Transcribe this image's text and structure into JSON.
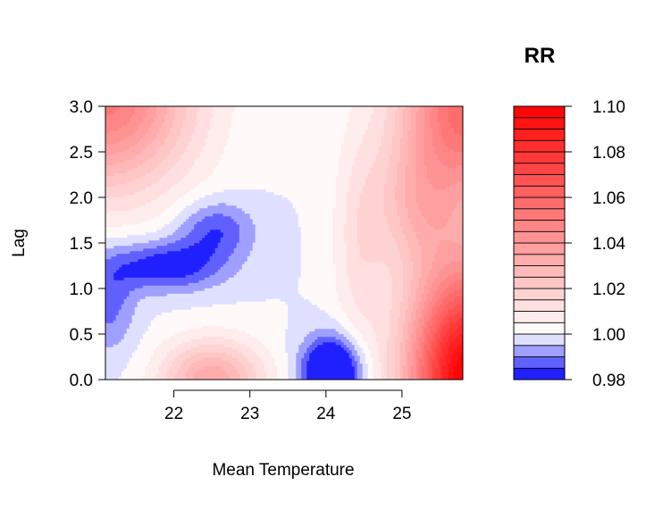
{
  "chart_data": {
    "type": "heatmap",
    "subtype": "filled-contour",
    "title": "",
    "xlabel": "Mean Temperature",
    "ylabel": "Lag",
    "legend_title": "RR",
    "xlim": [
      21.1,
      25.8
    ],
    "ylim": [
      0.0,
      3.0
    ],
    "x_ticks": [
      22,
      23,
      24,
      25
    ],
    "y_ticks": [
      "0.0",
      "0.5",
      "1.0",
      "1.5",
      "2.0",
      "2.5",
      "3.0"
    ],
    "color_scale": {
      "min": 0.98,
      "max": 1.1,
      "ticks": [
        "0.98",
        "1.00",
        "1.02",
        "1.04",
        "1.06",
        "1.08",
        "1.10"
      ],
      "levels": [
        0.98,
        0.985,
        0.99,
        0.995,
        1.0,
        1.005,
        1.01,
        1.015,
        1.02,
        1.025,
        1.03,
        1.035,
        1.04,
        1.045,
        1.05,
        1.055,
        1.06,
        1.065,
        1.07,
        1.075,
        1.08,
        1.085,
        1.09,
        1.095,
        1.1
      ],
      "low_color": "#0000ff",
      "mid_color": "#ffffff",
      "high_color": "#ff0000"
    },
    "features": [
      {
        "x": 24.08,
        "y": 0.08,
        "sx": 0.38,
        "sy": 0.38,
        "value": -0.036
      },
      {
        "x": 21.9,
        "y": 1.25,
        "sx": 0.75,
        "sy": 0.28,
        "value": -0.02
      },
      {
        "x": 22.55,
        "y": 1.65,
        "sx": 0.5,
        "sy": 0.32,
        "value": -0.015
      },
      {
        "x": 21.15,
        "y": 0.85,
        "sx": 0.35,
        "sy": 0.55,
        "value": -0.012
      },
      {
        "x": 22.5,
        "y": 0.0,
        "sx": 0.65,
        "sy": 0.42,
        "value": 0.034
      },
      {
        "x": 21.1,
        "y": 3.1,
        "sx": 1.1,
        "sy": 1.0,
        "value": 0.052
      },
      {
        "x": 25.85,
        "y": 0.0,
        "sx": 0.75,
        "sy": 1.25,
        "value": 0.1
      },
      {
        "x": 25.85,
        "y": 3.0,
        "sx": 0.85,
        "sy": 1.0,
        "value": 0.058
      },
      {
        "x": 25.2,
        "y": 1.9,
        "sx": 0.55,
        "sy": 0.7,
        "value": 0.02
      },
      {
        "x": 24.45,
        "y": 1.5,
        "sx": 0.35,
        "sy": 1.2,
        "value": 0.012
      }
    ]
  }
}
